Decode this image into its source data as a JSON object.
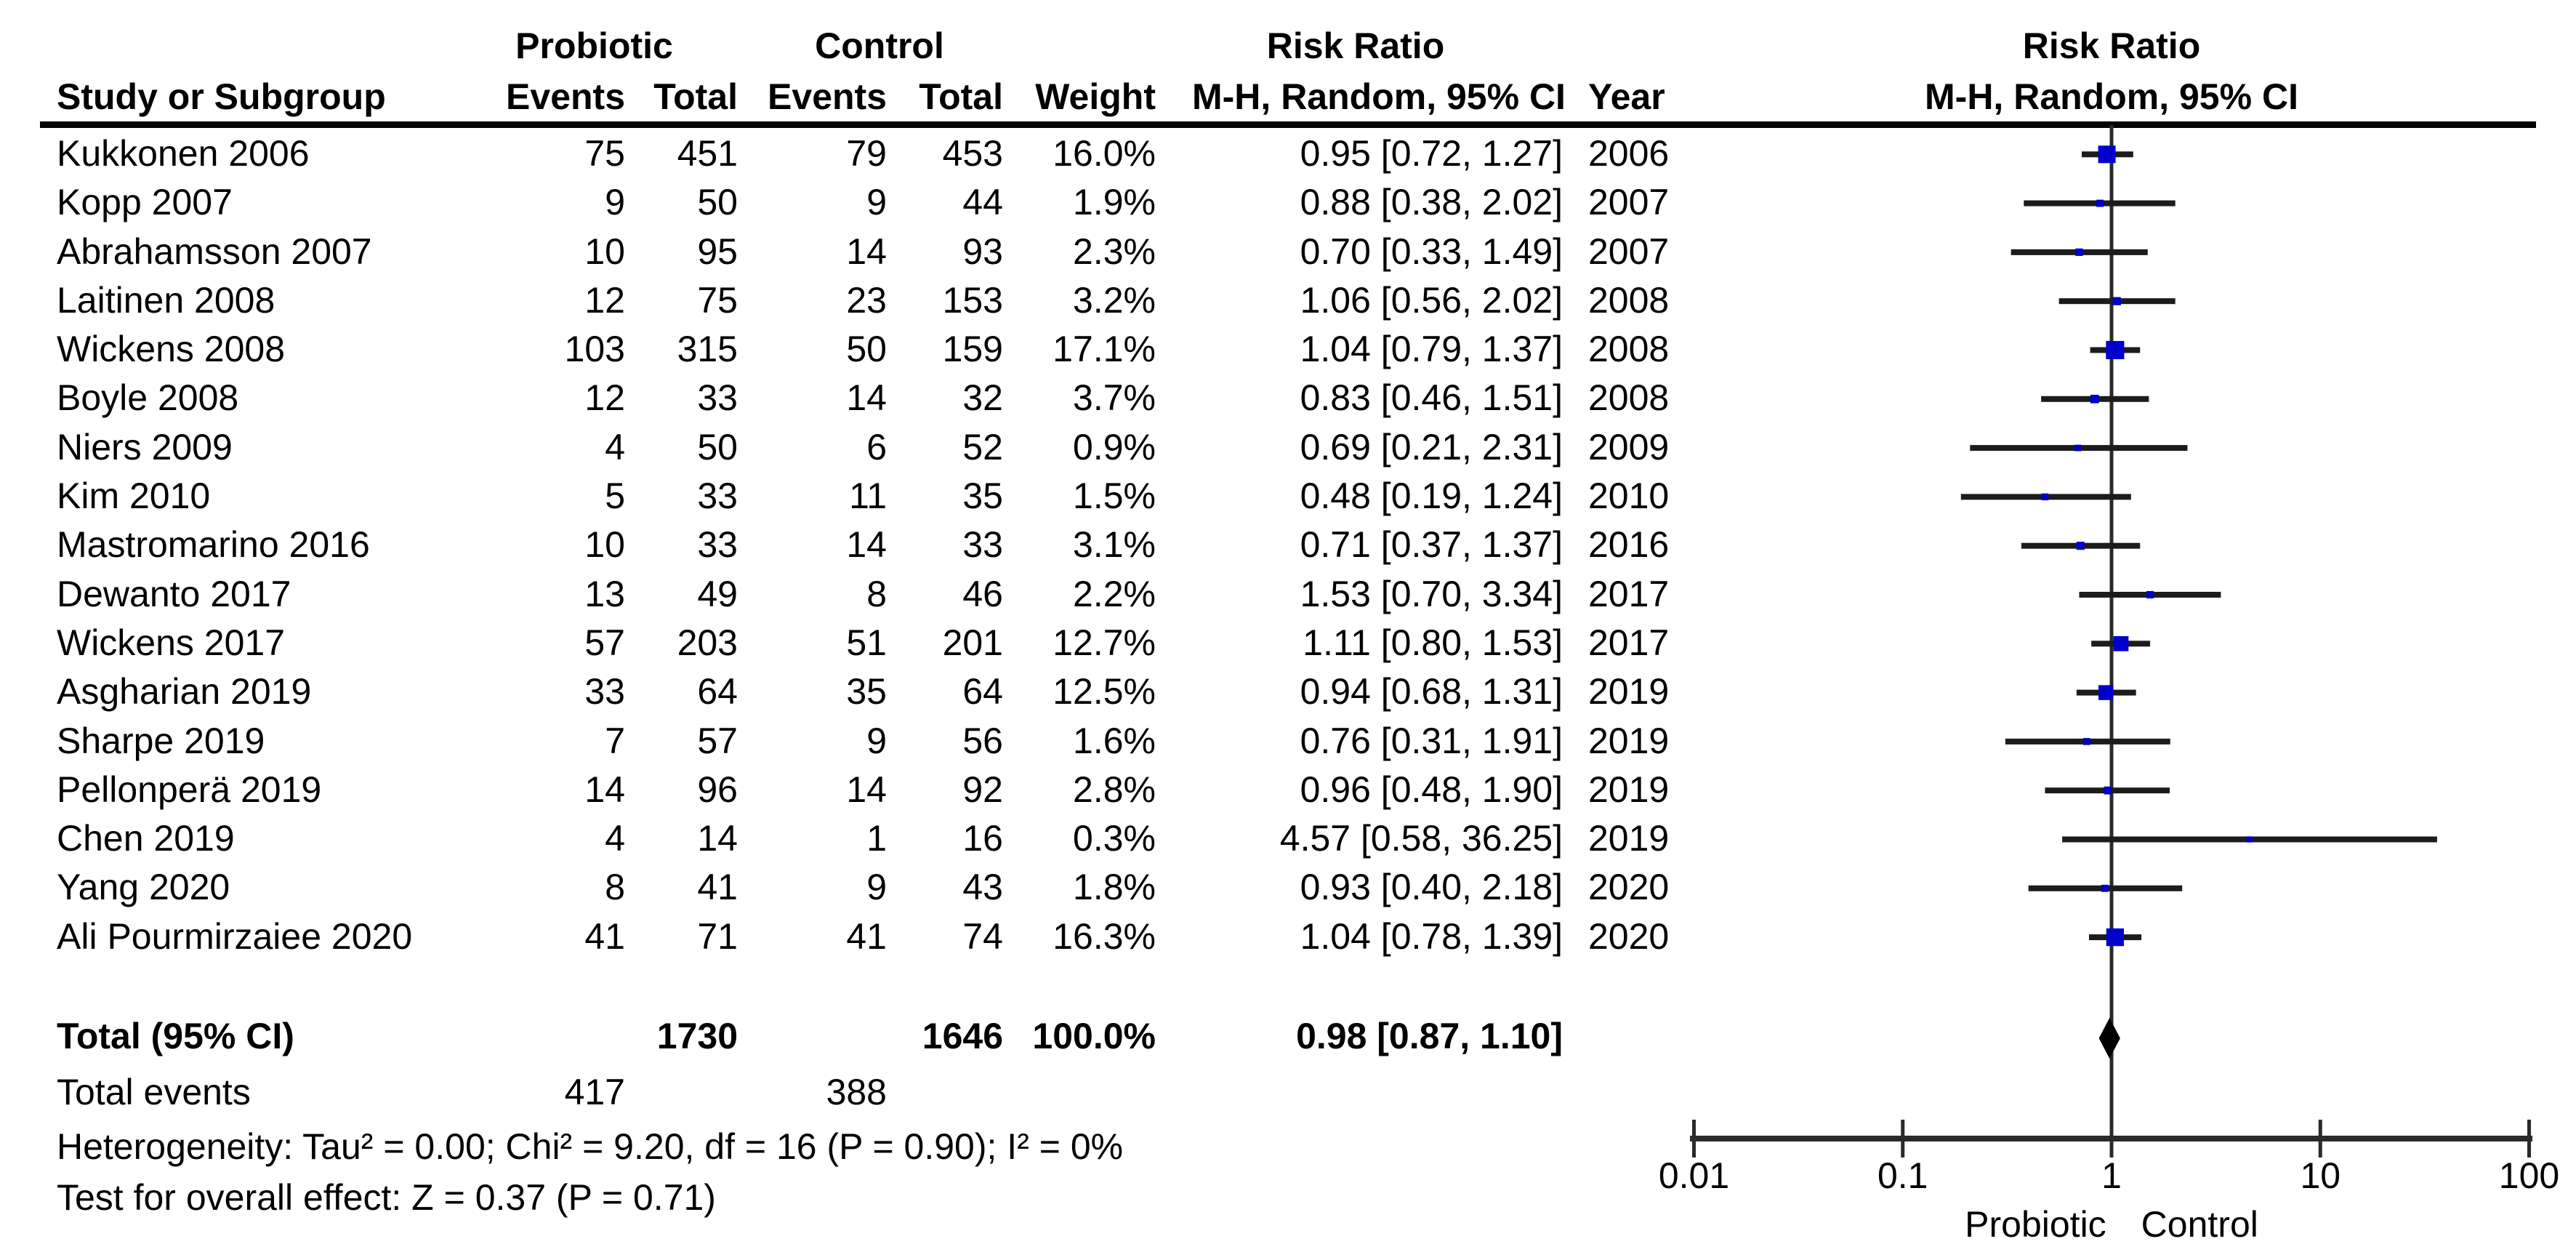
{
  "header": {
    "row1": {
      "probiotic_group": "Probiotic",
      "control_group": "Control",
      "risk_ratio": "Risk Ratio",
      "risk_ratio_plot": "Risk Ratio"
    },
    "row2": {
      "study": "Study or Subgroup",
      "events_probiotic": "Events",
      "total_probiotic": "Total",
      "events_control": "Events",
      "total_control": "Total",
      "weight": "Weight",
      "mh_random_ci": "M-H, Random, 95% CI",
      "year": "Year",
      "mh_random_ci_plot": "M-H, Random, 95% CI"
    }
  },
  "footer_stats": {
    "total_events_label": "Total events",
    "total_events_probiotic": "417",
    "total_events_control": "388",
    "heterogeneity": "Heterogeneity: Tau² = 0.00; Chi² = 9.20, df = 16 (P = 0.90); I² = 0%",
    "overall_effect": "Test for overall effect: Z = 0.37 (P = 0.71)"
  },
  "colors": {
    "square": "#0000CC",
    "ci_line": "#1c1c1c",
    "axis_line": "#2a2a2a",
    "diamond": "#000000"
  },
  "chart_data": {
    "type": "forest",
    "effect_measure": "Risk Ratio",
    "method": "M-H, Random, 95% CI",
    "x_axis": {
      "scale": "log",
      "ticks": [
        0.01,
        0.1,
        1,
        10,
        100
      ],
      "tick_labels": [
        "0.01",
        "0.1",
        "1",
        "10",
        "100"
      ],
      "left_label": "Probiotic",
      "right_label": "Control"
    },
    "studies": [
      {
        "name": "Kukkonen 2006",
        "events_treat": "75",
        "total_treat": "451",
        "events_ctrl": "79",
        "total_ctrl": "453",
        "weight": "16.0%",
        "weight_value": 16.0,
        "rr": 0.95,
        "ci_low": 0.72,
        "ci_high": 1.27,
        "ci_text": "0.95 [0.72, 1.27]",
        "year": "2006"
      },
      {
        "name": "Kopp 2007",
        "events_treat": "9",
        "total_treat": "50",
        "events_ctrl": "9",
        "total_ctrl": "44",
        "weight": "1.9%",
        "weight_value": 1.9,
        "rr": 0.88,
        "ci_low": 0.38,
        "ci_high": 2.02,
        "ci_text": "0.88 [0.38, 2.02]",
        "year": "2007"
      },
      {
        "name": "Abrahamsson 2007",
        "events_treat": "10",
        "total_treat": "95",
        "events_ctrl": "14",
        "total_ctrl": "93",
        "weight": "2.3%",
        "weight_value": 2.3,
        "rr": 0.7,
        "ci_low": 0.33,
        "ci_high": 1.49,
        "ci_text": "0.70 [0.33, 1.49]",
        "year": "2007"
      },
      {
        "name": "Laitinen 2008",
        "events_treat": "12",
        "total_treat": "75",
        "events_ctrl": "23",
        "total_ctrl": "153",
        "weight": "3.2%",
        "weight_value": 3.2,
        "rr": 1.06,
        "ci_low": 0.56,
        "ci_high": 2.02,
        "ci_text": "1.06 [0.56, 2.02]",
        "year": "2008"
      },
      {
        "name": "Wickens 2008",
        "events_treat": "103",
        "total_treat": "315",
        "events_ctrl": "50",
        "total_ctrl": "159",
        "weight": "17.1%",
        "weight_value": 17.1,
        "rr": 1.04,
        "ci_low": 0.79,
        "ci_high": 1.37,
        "ci_text": "1.04 [0.79, 1.37]",
        "year": "2008"
      },
      {
        "name": "Boyle 2008",
        "events_treat": "12",
        "total_treat": "33",
        "events_ctrl": "14",
        "total_ctrl": "32",
        "weight": "3.7%",
        "weight_value": 3.7,
        "rr": 0.83,
        "ci_low": 0.46,
        "ci_high": 1.51,
        "ci_text": "0.83 [0.46, 1.51]",
        "year": "2008"
      },
      {
        "name": "Niers 2009",
        "events_treat": "4",
        "total_treat": "50",
        "events_ctrl": "6",
        "total_ctrl": "52",
        "weight": "0.9%",
        "weight_value": 0.9,
        "rr": 0.69,
        "ci_low": 0.21,
        "ci_high": 2.31,
        "ci_text": "0.69 [0.21, 2.31]",
        "year": "2009"
      },
      {
        "name": "Kim 2010",
        "events_treat": "5",
        "total_treat": "33",
        "events_ctrl": "11",
        "total_ctrl": "35",
        "weight": "1.5%",
        "weight_value": 1.5,
        "rr": 0.48,
        "ci_low": 0.19,
        "ci_high": 1.24,
        "ci_text": "0.48 [0.19, 1.24]",
        "year": "2010"
      },
      {
        "name": "Mastromarino 2016",
        "events_treat": "10",
        "total_treat": "33",
        "events_ctrl": "14",
        "total_ctrl": "33",
        "weight": "3.1%",
        "weight_value": 3.1,
        "rr": 0.71,
        "ci_low": 0.37,
        "ci_high": 1.37,
        "ci_text": "0.71 [0.37, 1.37]",
        "year": "2016"
      },
      {
        "name": "Dewanto 2017",
        "events_treat": "13",
        "total_treat": "49",
        "events_ctrl": "8",
        "total_ctrl": "46",
        "weight": "2.2%",
        "weight_value": 2.2,
        "rr": 1.53,
        "ci_low": 0.7,
        "ci_high": 3.34,
        "ci_text": "1.53 [0.70, 3.34]",
        "year": "2017"
      },
      {
        "name": "Wickens 2017",
        "events_treat": "57",
        "total_treat": "203",
        "events_ctrl": "51",
        "total_ctrl": "201",
        "weight": "12.7%",
        "weight_value": 12.7,
        "rr": 1.11,
        "ci_low": 0.8,
        "ci_high": 1.53,
        "ci_text": "1.11 [0.80, 1.53]",
        "year": "2017"
      },
      {
        "name": "Asgharian 2019",
        "events_treat": "33",
        "total_treat": "64",
        "events_ctrl": "35",
        "total_ctrl": "64",
        "weight": "12.5%",
        "weight_value": 12.5,
        "rr": 0.94,
        "ci_low": 0.68,
        "ci_high": 1.31,
        "ci_text": "0.94 [0.68, 1.31]",
        "year": "2019"
      },
      {
        "name": "Sharpe 2019",
        "events_treat": "7",
        "total_treat": "57",
        "events_ctrl": "9",
        "total_ctrl": "56",
        "weight": "1.6%",
        "weight_value": 1.6,
        "rr": 0.76,
        "ci_low": 0.31,
        "ci_high": 1.91,
        "ci_text": "0.76 [0.31, 1.91]",
        "year": "2019"
      },
      {
        "name": "Pellonperä 2019",
        "events_treat": "14",
        "total_treat": "96",
        "events_ctrl": "14",
        "total_ctrl": "92",
        "weight": "2.8%",
        "weight_value": 2.8,
        "rr": 0.96,
        "ci_low": 0.48,
        "ci_high": 1.9,
        "ci_text": "0.96 [0.48, 1.90]",
        "year": "2019"
      },
      {
        "name": "Chen 2019",
        "events_treat": "4",
        "total_treat": "14",
        "events_ctrl": "1",
        "total_ctrl": "16",
        "weight": "0.3%",
        "weight_value": 0.3,
        "rr": 4.57,
        "ci_low": 0.58,
        "ci_high": 36.25,
        "ci_text": "4.57 [0.58, 36.25]",
        "year": "2019"
      },
      {
        "name": "Yang 2020",
        "events_treat": "8",
        "total_treat": "41",
        "events_ctrl": "9",
        "total_ctrl": "43",
        "weight": "1.8%",
        "weight_value": 1.8,
        "rr": 0.93,
        "ci_low": 0.4,
        "ci_high": 2.18,
        "ci_text": "0.93 [0.40, 2.18]",
        "year": "2020"
      },
      {
        "name": "Ali Pourmirzaiee 2020",
        "events_treat": "41",
        "total_treat": "71",
        "events_ctrl": "41",
        "total_ctrl": "74",
        "weight": "16.3%",
        "weight_value": 16.3,
        "rr": 1.04,
        "ci_low": 0.78,
        "ci_high": 1.39,
        "ci_text": "1.04 [0.78, 1.39]",
        "year": "2020"
      }
    ],
    "total": {
      "label": "Total (95% CI)",
      "total_treat": "1730",
      "total_ctrl": "1646",
      "weight": "100.0%",
      "rr": 0.98,
      "ci_low": 0.87,
      "ci_high": 1.1,
      "ci_text": "0.98 [0.87, 1.10]"
    }
  }
}
